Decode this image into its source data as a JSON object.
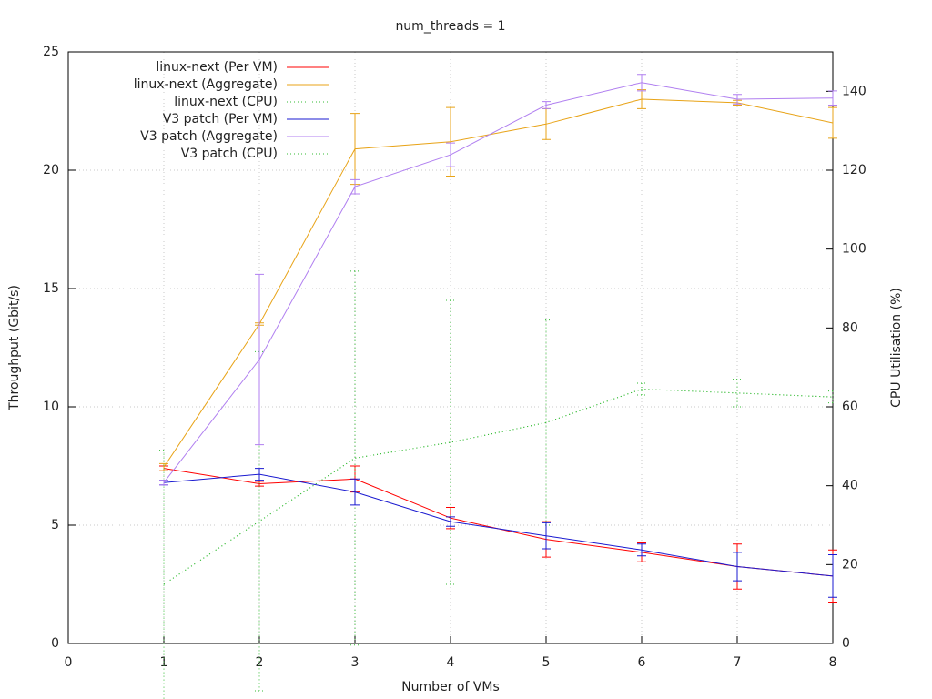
{
  "chart_data": {
    "type": "line",
    "title": "num_threads =  1",
    "xlabel": "Number of VMs",
    "ylabel": "Throughput (Gbit/s)",
    "y2label": "CPU Utilisation (%)",
    "x": [
      1,
      2,
      3,
      4,
      5,
      6,
      7,
      8
    ],
    "xlim": [
      0,
      8
    ],
    "xticks": [
      0,
      1,
      2,
      3,
      4,
      5,
      6,
      7,
      8
    ],
    "ylim": [
      0,
      25
    ],
    "yticks": [
      0,
      5,
      10,
      15,
      20,
      25
    ],
    "y2lim": [
      0,
      150
    ],
    "y2ticks": [
      0,
      20,
      40,
      60,
      80,
      100,
      120,
      140
    ],
    "grid": true,
    "legend": "top-left",
    "series": [
      {
        "name": "linux-next (Per VM)",
        "color": "#ff0000",
        "line_style": "solid",
        "values": [
          7.4,
          6.75,
          6.95,
          5.3,
          4.4,
          3.85,
          3.25,
          2.85
        ],
        "errors": [
          0.1,
          0.1,
          0.55,
          0.45,
          0.75,
          0.4,
          0.95,
          1.1
        ]
      },
      {
        "name": "linux-next (Aggregate)",
        "color": "#e8a317",
        "line_style": "solid",
        "values": [
          7.45,
          13.5,
          20.9,
          21.2,
          21.95,
          23.0,
          22.85,
          22.0
        ],
        "errors": [
          0.15,
          0.05,
          1.5,
          1.45,
          0.65,
          0.4,
          0.1,
          0.65
        ]
      },
      {
        "name": "linux-next (CPU)",
        "color": "#33bb33",
        "line_style": "dotted",
        "axis": "y2",
        "values": [
          15,
          31,
          47,
          51,
          56,
          64.5,
          63.5,
          62.5
        ],
        "errors": [
          34,
          43,
          47.4,
          36,
          26,
          1.5,
          3.5,
          1.5
        ]
      },
      {
        "name": "V3 patch (Per VM)",
        "color": "#1a1ad0",
        "line_style": "solid",
        "values": [
          6.8,
          7.15,
          6.4,
          5.15,
          4.55,
          3.95,
          3.25,
          2.85
        ],
        "errors": [
          0.1,
          0.25,
          0.55,
          0.2,
          0.55,
          0.25,
          0.6,
          0.9
        ]
      },
      {
        "name": "V3 patch (Aggregate)",
        "color": "#b07ff0",
        "line_style": "solid",
        "values": [
          6.8,
          12.0,
          19.3,
          20.65,
          22.75,
          23.7,
          23.0,
          23.05
        ],
        "errors": [
          0.1,
          3.6,
          0.3,
          0.5,
          0.15,
          0.35,
          0.2,
          0.3
        ]
      },
      {
        "name": "V3 patch (CPU)",
        "color": "#33bb33",
        "line_style": "dotted",
        "axis": "y2",
        "values": [
          15,
          31,
          47,
          51,
          56,
          64.5,
          63.5,
          62.5
        ]
      }
    ]
  }
}
